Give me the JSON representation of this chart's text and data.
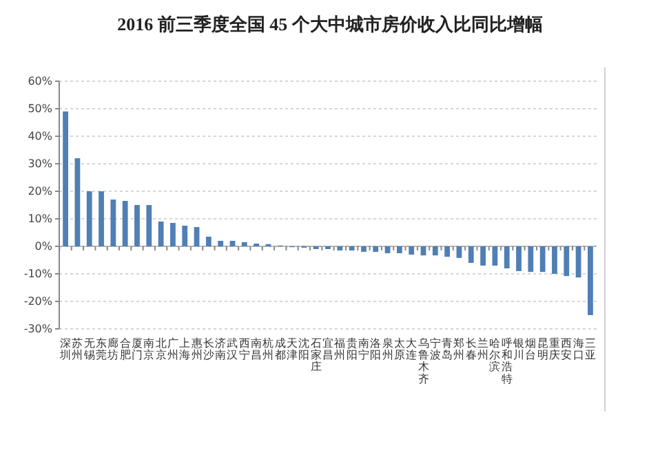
{
  "chart_data": {
    "type": "bar",
    "title": "2016 前三季度全国 45 个大中城市房价收入比同比增幅",
    "categories": [
      "深圳",
      "苏州",
      "无锡",
      "东莞",
      "廊坊",
      "合肥",
      "厦门",
      "南京",
      "北京",
      "广州",
      "上海",
      "惠州",
      "长沙",
      "济南",
      "武汉",
      "西宁",
      "南昌",
      "杭州",
      "成都",
      "天津",
      "沈阳",
      "石家庄",
      "宜昌",
      "福州",
      "贵阳",
      "南宁",
      "洛阳",
      "泉州",
      "太原",
      "大连",
      "乌鲁木齐",
      "宁波",
      "青岛",
      "郑州",
      "长春",
      "兰州",
      "哈尔滨",
      "呼和浩特",
      "银川",
      "烟台",
      "昆明",
      "重庆",
      "西安",
      "海口",
      "三亚"
    ],
    "values": [
      49,
      32,
      20,
      20,
      17,
      16.5,
      15,
      15,
      9,
      8.5,
      7.5,
      7,
      3.5,
      2,
      2,
      1.5,
      1,
      0.8,
      0.3,
      -0.3,
      -0.5,
      -1,
      -1,
      -1.5,
      -1.5,
      -2,
      -2,
      -2.5,
      -2.5,
      -3,
      -3.3,
      -3.3,
      -3.8,
      -4.2,
      -6,
      -7,
      -7,
      -8,
      -9,
      -9.3,
      -9.3,
      -10,
      -10.8,
      -11.3,
      -25
    ],
    "color": "#4f7fb5",
    "ylim": [
      -30,
      60
    ],
    "yticks": [
      {
        "value": -30,
        "label": "-30%"
      },
      {
        "value": -20,
        "label": "-20%"
      },
      {
        "value": -10,
        "label": "-10%"
      },
      {
        "value": 0,
        "label": "0%"
      },
      {
        "value": 10,
        "label": "10%"
      },
      {
        "value": 20,
        "label": "20%"
      },
      {
        "value": 30,
        "label": "30%"
      },
      {
        "value": 40,
        "label": "40%"
      },
      {
        "value": 50,
        "label": "50%"
      },
      {
        "value": 60,
        "label": "60%"
      }
    ],
    "grid": "y"
  }
}
